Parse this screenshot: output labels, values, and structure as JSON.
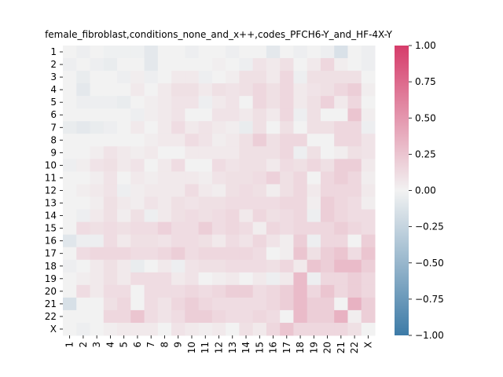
{
  "chart_data": {
    "type": "heatmap",
    "title": "female_fibroblast,conditions_none_and_x++,codes_PFCH6-Y_and_HF-4X-Y",
    "xlabel": "",
    "ylabel": "",
    "rows": [
      "1",
      "2",
      "3",
      "4",
      "5",
      "6",
      "7",
      "8",
      "9",
      "10",
      "11",
      "12",
      "13",
      "14",
      "15",
      "16",
      "17",
      "18",
      "19",
      "20",
      "21",
      "22",
      "X"
    ],
    "cols": [
      "1",
      "2",
      "3",
      "4",
      "5",
      "6",
      "7",
      "8",
      "9",
      "10",
      "11",
      "12",
      "13",
      "14",
      "15",
      "16",
      "17",
      "18",
      "19",
      "20",
      "21",
      "22",
      "X"
    ],
    "colorbar": {
      "min": -1.0,
      "max": 1.0,
      "ticks": [
        1.0,
        0.75,
        0.5,
        0.25,
        0.0,
        -0.25,
        -0.5,
        -0.75,
        -1.0
      ],
      "tick_labels": [
        "1.00",
        "0.75",
        "0.50",
        "0.25",
        "0.00",
        "−0.25",
        "−0.50",
        "−0.75",
        "−1.00"
      ],
      "low_color": "#3d7ba7",
      "mid_color": "#f2f2f2",
      "high_color": "#d63c6a"
    },
    "values": [
      [
        0.0,
        -0.03,
        0.0,
        -0.02,
        -0.02,
        -0.02,
        -0.08,
        0.0,
        0.0,
        -0.03,
        0.0,
        0.0,
        -0.03,
        0.0,
        0.0,
        -0.08,
        0.0,
        -0.03,
        0.0,
        -0.03,
        -0.14,
        0.0,
        -0.03
      ],
      [
        -0.03,
        0.0,
        -0.03,
        -0.05,
        0.0,
        0.0,
        -0.08,
        0.0,
        0.0,
        0.0,
        0.0,
        0.02,
        0.0,
        -0.03,
        0.08,
        0.05,
        0.1,
        0.0,
        0.05,
        0.15,
        0.03,
        0.0,
        -0.03
      ],
      [
        0.0,
        -0.05,
        0.0,
        0.0,
        -0.03,
        0.03,
        -0.03,
        0.0,
        0.05,
        0.05,
        -0.03,
        0.0,
        0.03,
        0.1,
        0.1,
        0.05,
        0.15,
        -0.03,
        0.1,
        0.1,
        0.1,
        0.1,
        0.0
      ],
      [
        0.0,
        -0.08,
        0.0,
        0.0,
        0.0,
        0.05,
        0.0,
        0.05,
        0.1,
        0.1,
        0.05,
        0.1,
        0.08,
        0.1,
        0.15,
        0.1,
        0.15,
        0.05,
        0.08,
        0.1,
        0.15,
        0.2,
        0.03
      ],
      [
        0.0,
        -0.03,
        -0.03,
        -0.03,
        -0.05,
        0.0,
        0.03,
        0.05,
        0.08,
        0.08,
        -0.03,
        0.05,
        0.08,
        0.0,
        0.15,
        0.1,
        0.15,
        0.05,
        0.1,
        0.18,
        0.05,
        0.15,
        0.0
      ],
      [
        0.0,
        0.0,
        0.0,
        0.0,
        0.0,
        -0.03,
        0.03,
        0.05,
        0.08,
        0.0,
        0.0,
        0.08,
        0.08,
        0.05,
        0.1,
        0.05,
        0.15,
        -0.03,
        0.1,
        0.0,
        0.0,
        0.25,
        0.03
      ],
      [
        -0.05,
        -0.08,
        -0.05,
        -0.03,
        0.0,
        0.05,
        0.0,
        0.05,
        0.12,
        0.05,
        0.08,
        0.05,
        0.03,
        -0.05,
        0.1,
        0.0,
        0.1,
        0.0,
        0.1,
        0.1,
        0.15,
        0.15,
        -0.03
      ],
      [
        0.0,
        0.0,
        0.0,
        0.0,
        0.0,
        0.0,
        0.03,
        0.05,
        0.05,
        0.12,
        0.08,
        0.03,
        0.05,
        0.1,
        0.2,
        0.1,
        0.15,
        0.15,
        0.0,
        0.0,
        0.15,
        0.15,
        0.08
      ],
      [
        0.0,
        0.0,
        0.03,
        0.08,
        0.05,
        0.03,
        0.05,
        0.0,
        0.0,
        0.05,
        0.05,
        0.05,
        0.05,
        0.1,
        0.1,
        0.1,
        0.15,
        -0.03,
        0.1,
        0.0,
        0.03,
        0.1,
        0.08
      ],
      [
        -0.03,
        0.03,
        0.08,
        0.1,
        0.05,
        0.08,
        0.0,
        0.05,
        0.12,
        0.0,
        0.0,
        0.12,
        0.08,
        0.1,
        0.1,
        0.05,
        0.12,
        0.1,
        0.15,
        0.1,
        0.2,
        0.2,
        0.05
      ],
      [
        0.0,
        0.0,
        0.03,
        0.08,
        0.0,
        0.05,
        0.03,
        0.05,
        0.05,
        0.05,
        0.03,
        0.08,
        0.1,
        0.1,
        0.12,
        0.18,
        0.1,
        0.15,
        0.0,
        0.15,
        0.2,
        0.15,
        0.03
      ],
      [
        0.0,
        0.03,
        0.05,
        0.08,
        -0.03,
        0.03,
        0.05,
        0.05,
        0.05,
        0.12,
        0.05,
        0.03,
        0.1,
        0.12,
        0.1,
        0.03,
        0.1,
        0.15,
        0.05,
        0.15,
        0.15,
        0.15,
        0.05
      ],
      [
        0.0,
        0.0,
        0.03,
        0.1,
        0.05,
        0.03,
        0.08,
        0.05,
        0.1,
        0.08,
        0.1,
        0.1,
        0.12,
        0.12,
        0.12,
        0.12,
        0.15,
        0.15,
        0.03,
        0.2,
        0.15,
        0.12,
        0.03
      ],
      [
        0.0,
        -0.03,
        0.05,
        0.1,
        0.03,
        0.1,
        -0.03,
        0.05,
        0.1,
        0.12,
        0.1,
        0.12,
        0.15,
        0.05,
        0.15,
        0.1,
        0.12,
        0.15,
        -0.03,
        0.2,
        0.15,
        0.12,
        0.12
      ],
      [
        0.0,
        0.12,
        0.1,
        0.12,
        0.1,
        0.12,
        0.12,
        0.18,
        0.12,
        0.12,
        0.2,
        0.12,
        0.15,
        0.12,
        0.03,
        0.15,
        0.12,
        0.15,
        0.15,
        0.15,
        0.2,
        0.15,
        0.12
      ],
      [
        -0.1,
        -0.03,
        -0.03,
        0.12,
        0.05,
        0.1,
        0.1,
        0.08,
        0.12,
        0.12,
        0.1,
        0.05,
        0.12,
        0.08,
        0.15,
        0.08,
        0.03,
        0.2,
        -0.03,
        0.15,
        0.15,
        0.0,
        0.2
      ],
      [
        0.0,
        0.12,
        0.15,
        0.15,
        0.15,
        0.12,
        0.12,
        0.15,
        0.2,
        0.12,
        0.15,
        0.15,
        0.15,
        0.15,
        0.12,
        0.0,
        0.03,
        0.25,
        0.1,
        0.2,
        0.25,
        0.12,
        0.25
      ],
      [
        -0.03,
        0.0,
        0.05,
        0.1,
        0.05,
        -0.05,
        0.0,
        0.05,
        -0.03,
        0.08,
        0.1,
        0.1,
        0.12,
        0.12,
        0.12,
        0.1,
        0.15,
        0.05,
        0.25,
        0.2,
        0.3,
        0.3,
        0.2
      ],
      [
        0.0,
        0.03,
        0.05,
        0.1,
        0.05,
        0.12,
        0.12,
        0.12,
        0.05,
        0.08,
        0.0,
        0.03,
        0.05,
        0.0,
        0.05,
        -0.03,
        0.05,
        0.3,
        -0.03,
        0.15,
        0.15,
        0.2,
        0.15
      ],
      [
        0.0,
        0.12,
        0.05,
        0.12,
        0.12,
        0.0,
        0.12,
        0.12,
        0.12,
        0.15,
        0.12,
        0.15,
        0.2,
        0.2,
        0.12,
        0.15,
        0.2,
        0.3,
        0.15,
        0.25,
        0.15,
        0.2,
        0.15
      ],
      [
        -0.15,
        0.0,
        0.0,
        0.1,
        0.15,
        0.0,
        0.12,
        0.08,
        0.15,
        0.2,
        0.15,
        0.12,
        0.12,
        0.12,
        0.12,
        0.15,
        0.2,
        0.3,
        0.2,
        0.2,
        0.0,
        0.35,
        0.2
      ],
      [
        0.0,
        0.0,
        0.0,
        0.15,
        0.15,
        0.25,
        0.12,
        0.08,
        0.12,
        0.2,
        0.2,
        0.15,
        0.12,
        0.12,
        0.15,
        0.12,
        0.0,
        0.3,
        0.2,
        0.2,
        0.35,
        0.03,
        0.2
      ],
      [
        0.0,
        -0.03,
        0.0,
        0.03,
        0.05,
        0.05,
        0.05,
        0.0,
        0.08,
        0.05,
        0.03,
        0.05,
        0.0,
        0.1,
        0.05,
        0.15,
        0.25,
        0.15,
        0.15,
        0.15,
        0.15,
        0.1,
        0.0
      ]
    ]
  }
}
